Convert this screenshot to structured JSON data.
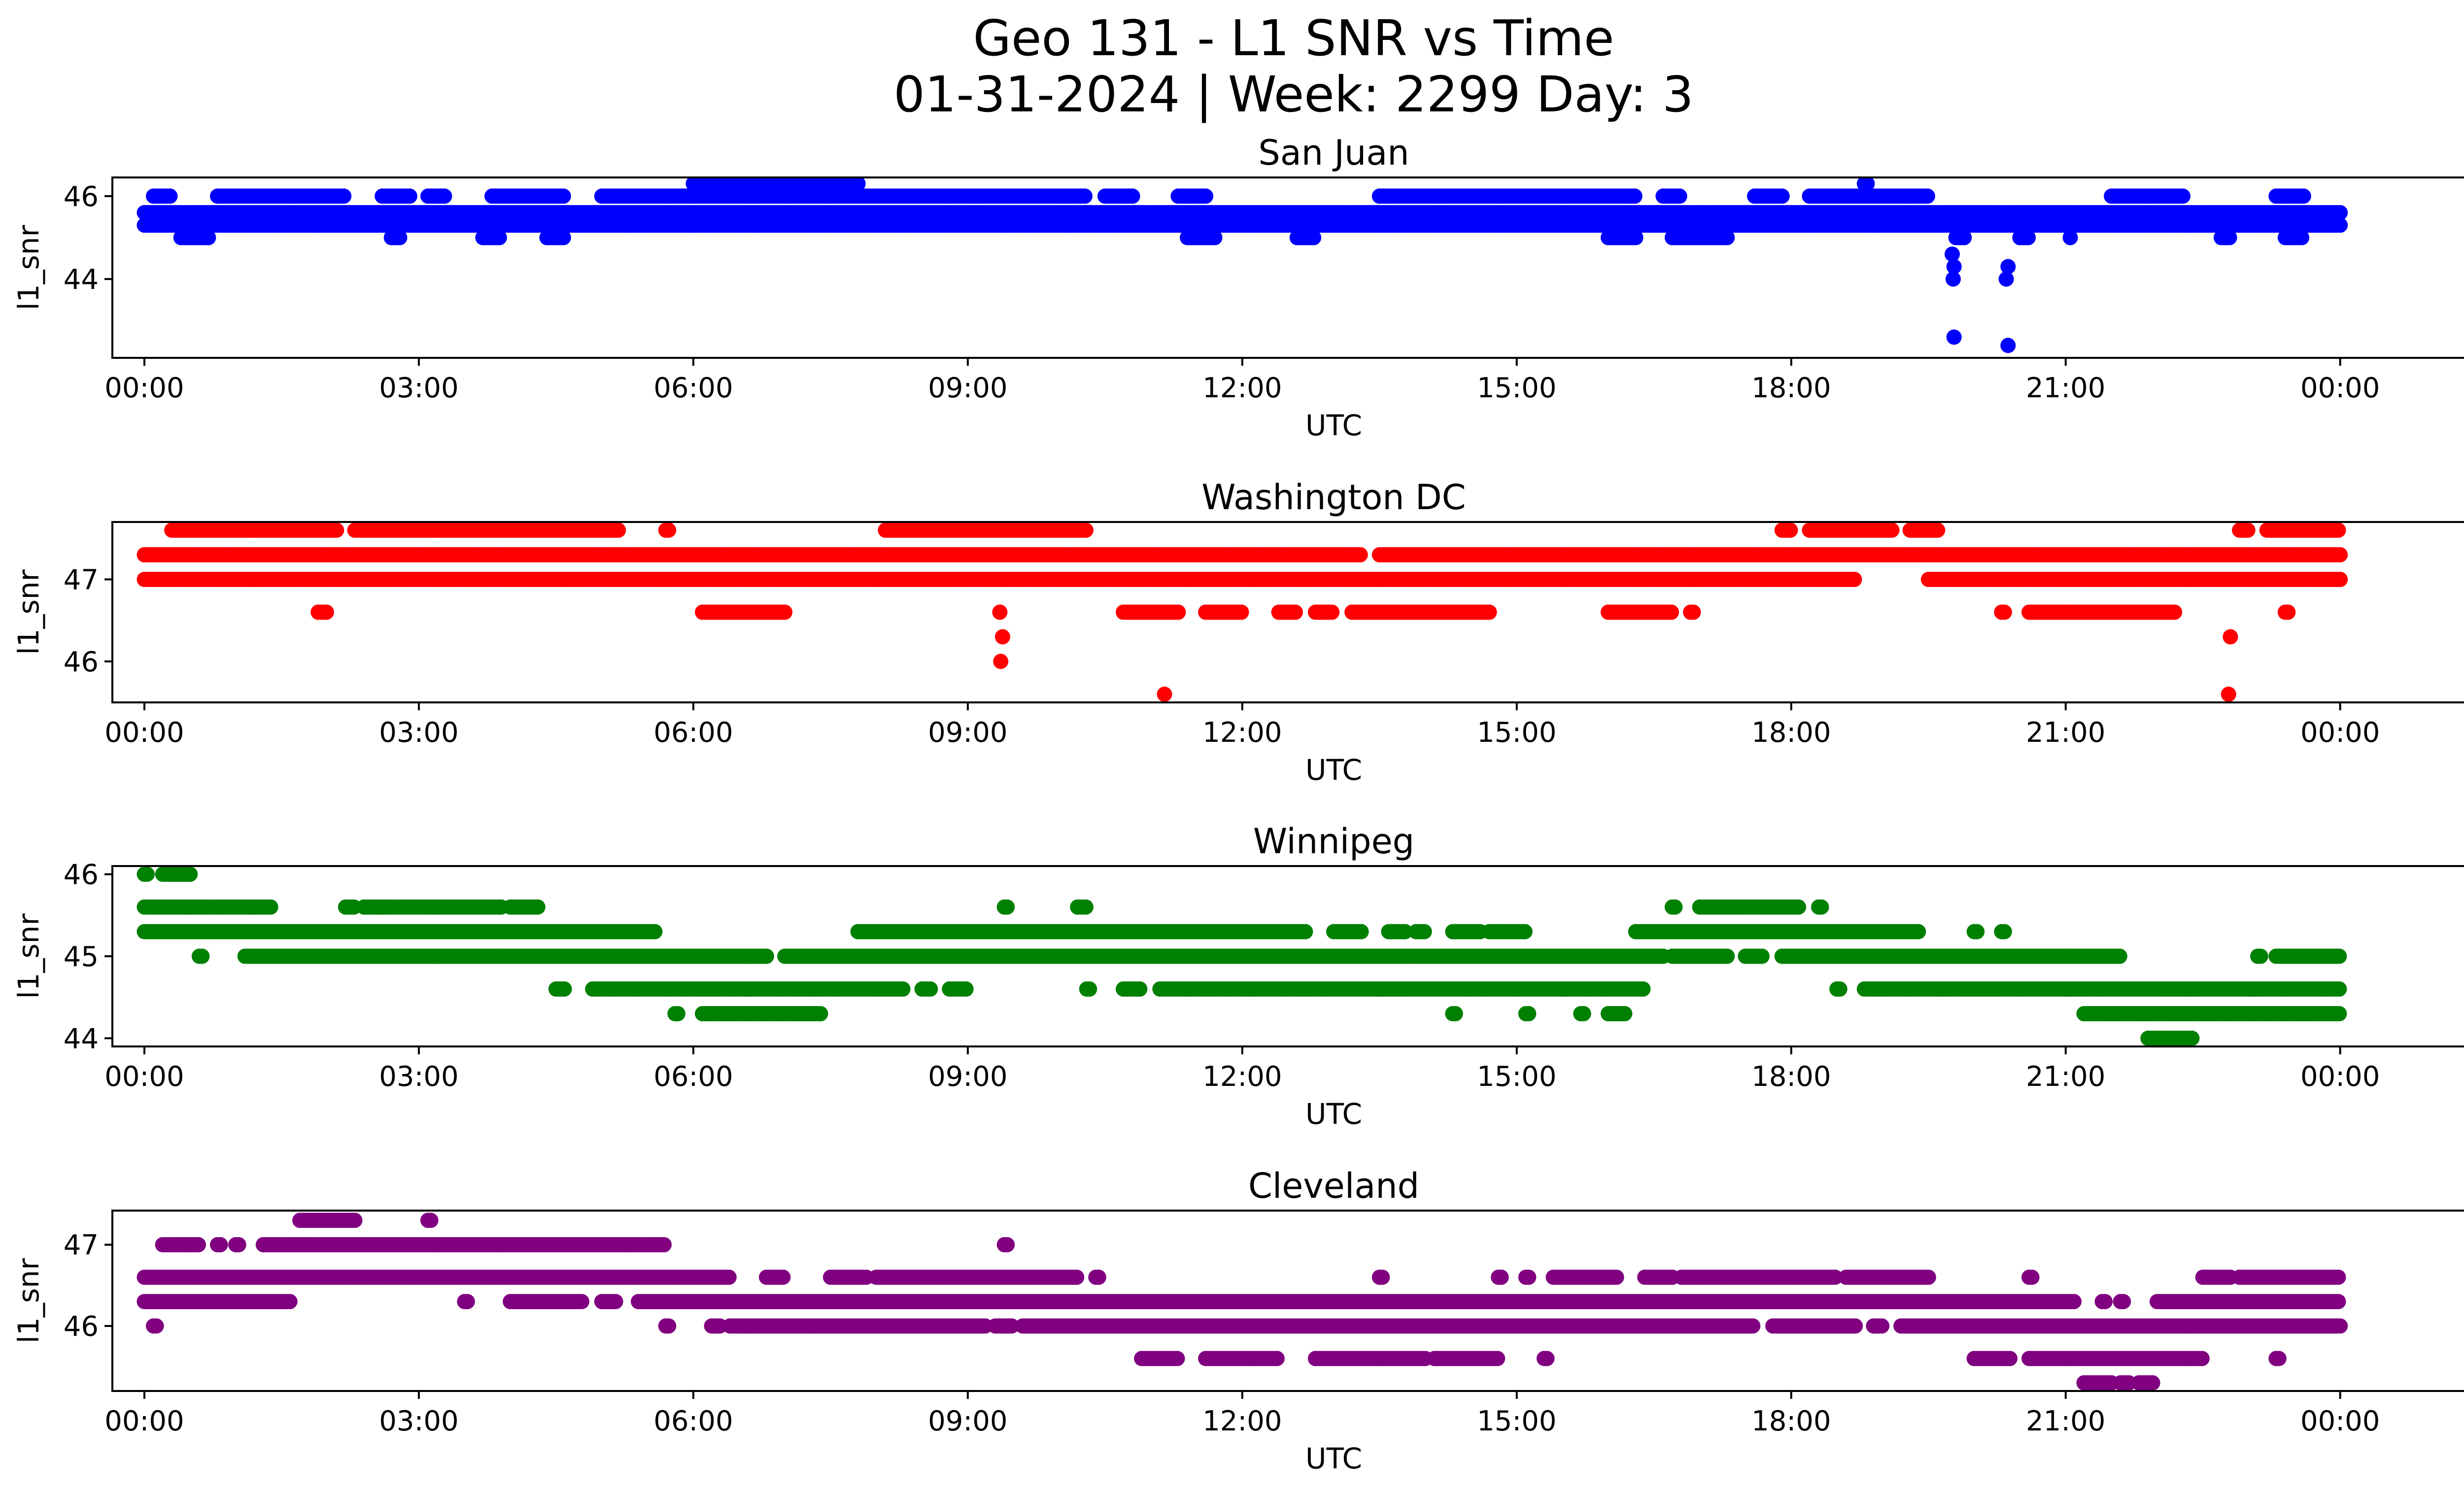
{
  "figure": {
    "title_line1": "Geo 131 - L1 SNR vs Time",
    "title_line2": "01-31-2024 | Week: 2299 Day: 3"
  },
  "chart_data": [
    {
      "type": "scatter",
      "title": "San Juan",
      "xlabel": "UTC",
      "ylabel": "l1_snr",
      "color": "#0000ff",
      "xlim": [
        -0.35,
        26.35
      ],
      "ylim": [
        42.1,
        46.45
      ],
      "x_ticks": [
        "00:00",
        "03:00",
        "06:00",
        "09:00",
        "12:00",
        "15:00",
        "18:00",
        "21:00",
        "00:00"
      ],
      "y_ticks": [
        44,
        46
      ],
      "grid": false,
      "levels": [
        {
          "y": 45.6,
          "ranges": [
            [
              0.0,
              24.0
            ]
          ]
        },
        {
          "y": 45.3,
          "ranges": [
            [
              0.0,
              24.0
            ]
          ]
        },
        {
          "y": 46.0,
          "ranges": [
            [
              0.1,
              0.3
            ],
            [
              0.8,
              2.2
            ],
            [
              2.6,
              2.9
            ],
            [
              3.1,
              3.3
            ],
            [
              3.8,
              4.6
            ],
            [
              5.0,
              10.3
            ],
            [
              10.5,
              10.8
            ],
            [
              11.3,
              11.6
            ],
            [
              13.5,
              16.3
            ],
            [
              16.6,
              16.8
            ],
            [
              17.6,
              17.9
            ],
            [
              18.2,
              19.5
            ],
            [
              21.5,
              22.3
            ],
            [
              23.3,
              23.6
            ]
          ]
        },
        {
          "y": 46.3,
          "ranges": [
            [
              6.0,
              7.8
            ],
            [
              18.8,
              18.85
            ]
          ]
        },
        {
          "y": 45.0,
          "ranges": [
            [
              0.4,
              0.7
            ],
            [
              2.7,
              2.8
            ],
            [
              3.7,
              3.9
            ],
            [
              4.4,
              4.6
            ],
            [
              11.4,
              11.7
            ],
            [
              12.6,
              12.8
            ],
            [
              16.0,
              16.3
            ],
            [
              16.7,
              17.3
            ],
            [
              19.8,
              19.9
            ],
            [
              20.5,
              20.6
            ],
            [
              22.7,
              22.8
            ],
            [
              23.4,
              23.6
            ]
          ]
        }
      ],
      "points": [
        [
          19.76,
          44.6
        ],
        [
          19.78,
          44.3
        ],
        [
          19.77,
          44.0
        ],
        [
          19.78,
          42.6
        ],
        [
          20.37,
          44.3
        ],
        [
          20.35,
          44.0
        ],
        [
          20.37,
          42.4
        ],
        [
          20.5,
          45.0
        ],
        [
          21.05,
          45.0
        ]
      ]
    },
    {
      "type": "scatter",
      "title": "Washington DC",
      "xlabel": "UTC",
      "ylabel": "l1_snr",
      "color": "#ff0000",
      "xlim": [
        -0.35,
        26.35
      ],
      "ylim": [
        45.5,
        47.7
      ],
      "x_ticks": [
        "00:00",
        "03:00",
        "06:00",
        "09:00",
        "12:00",
        "15:00",
        "18:00",
        "21:00",
        "00:00"
      ],
      "y_ticks": [
        46,
        47
      ],
      "grid": false,
      "levels": [
        {
          "y": 47.3,
          "ranges": [
            [
              0.0,
              13.3
            ],
            [
              13.5,
              24.0
            ]
          ]
        },
        {
          "y": 47.0,
          "ranges": [
            [
              0.0,
              18.7
            ],
            [
              19.5,
              24.0
            ]
          ]
        },
        {
          "y": 47.6,
          "ranges": [
            [
              0.3,
              2.1
            ],
            [
              2.3,
              5.2
            ],
            [
              5.7,
              5.75
            ],
            [
              8.1,
              10.3
            ],
            [
              17.9,
              18.0
            ],
            [
              18.2,
              19.1
            ],
            [
              19.3,
              19.6
            ],
            [
              22.9,
              23.0
            ],
            [
              23.2,
              24.0
            ]
          ]
        },
        {
          "y": 46.6,
          "ranges": [
            [
              1.9,
              2.0
            ],
            [
              6.1,
              7.0
            ],
            [
              10.7,
              11.3
            ],
            [
              11.6,
              12.0
            ],
            [
              12.4,
              12.6
            ],
            [
              12.8,
              13.0
            ],
            [
              13.2,
              14.7
            ],
            [
              16.0,
              16.7
            ],
            [
              16.9,
              16.95
            ],
            [
              20.3,
              20.35
            ],
            [
              20.6,
              22.2
            ],
            [
              23.4,
              23.45
            ]
          ]
        }
      ],
      "points": [
        [
          9.35,
          46.6
        ],
        [
          9.38,
          46.3
        ],
        [
          9.36,
          46.0
        ],
        [
          11.15,
          45.6
        ],
        [
          22.8,
          46.3
        ],
        [
          22.78,
          45.6
        ]
      ]
    },
    {
      "type": "scatter",
      "title": "Winnipeg",
      "xlabel": "UTC",
      "ylabel": "l1_snr",
      "color": "#008000",
      "xlim": [
        -0.35,
        26.35
      ],
      "ylim": [
        43.9,
        46.1
      ],
      "x_ticks": [
        "00:00",
        "03:00",
        "06:00",
        "09:00",
        "12:00",
        "15:00",
        "18:00",
        "21:00",
        "00:00"
      ],
      "y_ticks": [
        44,
        45,
        46
      ],
      "grid": false,
      "levels": [
        {
          "y": 46.0,
          "ranges": [
            [
              0.0,
              0.05
            ],
            [
              0.2,
              0.5
            ]
          ]
        },
        {
          "y": 45.6,
          "ranges": [
            [
              0.0,
              1.4
            ],
            [
              2.2,
              2.3
            ],
            [
              2.4,
              3.9
            ],
            [
              4.0,
              4.3
            ],
            [
              9.4,
              9.45
            ],
            [
              10.2,
              10.3
            ],
            [
              16.7,
              16.75
            ],
            [
              17.0,
              18.1
            ],
            [
              18.3,
              18.35
            ]
          ]
        },
        {
          "y": 45.3,
          "ranges": [
            [
              0.0,
              5.6
            ],
            [
              7.8,
              12.7
            ],
            [
              13.0,
              13.3
            ],
            [
              13.6,
              13.8
            ],
            [
              13.9,
              14.0
            ],
            [
              14.3,
              14.6
            ],
            [
              14.7,
              15.1
            ],
            [
              16.3,
              19.4
            ],
            [
              20.0,
              20.05
            ],
            [
              20.3,
              20.35
            ]
          ]
        },
        {
          "y": 45.0,
          "ranges": [
            [
              0.6,
              0.65
            ],
            [
              1.1,
              6.8
            ],
            [
              7.0,
              16.6
            ],
            [
              16.7,
              17.3
            ],
            [
              17.5,
              17.7
            ],
            [
              17.9,
              21.6
            ],
            [
              23.1,
              23.15
            ],
            [
              23.3,
              24.0
            ]
          ]
        },
        {
          "y": 44.6,
          "ranges": [
            [
              4.5,
              4.6
            ],
            [
              4.9,
              8.3
            ],
            [
              8.5,
              8.6
            ],
            [
              8.8,
              9.0
            ],
            [
              10.3,
              10.35
            ],
            [
              10.7,
              10.9
            ],
            [
              11.1,
              16.4
            ],
            [
              18.5,
              18.55
            ],
            [
              18.8,
              24.0
            ]
          ]
        },
        {
          "y": 44.3,
          "ranges": [
            [
              5.8,
              5.85
            ],
            [
              6.1,
              7.4
            ],
            [
              14.3,
              14.35
            ],
            [
              15.1,
              15.15
            ],
            [
              15.7,
              15.75
            ],
            [
              16.0,
              16.2
            ],
            [
              21.2,
              24.0
            ]
          ]
        },
        {
          "y": 44.0,
          "ranges": [
            [
              21.9,
              22.4
            ]
          ]
        }
      ],
      "points": []
    },
    {
      "type": "scatter",
      "title": "Cleveland",
      "xlabel": "UTC",
      "ylabel": "l1_snr",
      "color": "#800080",
      "xlim": [
        -0.35,
        26.35
      ],
      "ylim": [
        45.2,
        47.42
      ],
      "x_ticks": [
        "00:00",
        "03:00",
        "06:00",
        "09:00",
        "12:00",
        "15:00",
        "18:00",
        "21:00",
        "00:00"
      ],
      "y_ticks": [
        46,
        47
      ],
      "grid": false,
      "levels": [
        {
          "y": 47.3,
          "ranges": [
            [
              1.7,
              2.3
            ],
            [
              3.1,
              3.15
            ]
          ]
        },
        {
          "y": 47.0,
          "ranges": [
            [
              0.2,
              0.6
            ],
            [
              0.8,
              0.85
            ],
            [
              1.0,
              1.05
            ],
            [
              1.3,
              5.7
            ],
            [
              9.4,
              9.45
            ]
          ]
        },
        {
          "y": 46.6,
          "ranges": [
            [
              0.0,
              6.4
            ],
            [
              6.8,
              7.0
            ],
            [
              7.5,
              7.9
            ],
            [
              8.0,
              10.2
            ],
            [
              10.4,
              10.45
            ],
            [
              13.5,
              13.55
            ],
            [
              14.8,
              14.85
            ],
            [
              15.1,
              15.15
            ],
            [
              15.4,
              16.1
            ],
            [
              16.4,
              16.7
            ],
            [
              16.8,
              18.5
            ],
            [
              18.6,
              19.5
            ],
            [
              20.6,
              20.65
            ],
            [
              22.5,
              22.8
            ],
            [
              22.9,
              24.0
            ]
          ]
        },
        {
          "y": 46.3,
          "ranges": [
            [
              0.0,
              1.6
            ],
            [
              3.5,
              3.55
            ],
            [
              4.0,
              4.8
            ],
            [
              5.0,
              5.15
            ],
            [
              5.4,
              21.1
            ],
            [
              21.4,
              21.45
            ],
            [
              21.6,
              21.65
            ],
            [
              22.0,
              24.0
            ]
          ]
        },
        {
          "y": 46.0,
          "ranges": [
            [
              0.1,
              0.15
            ],
            [
              5.7,
              5.75
            ],
            [
              6.2,
              6.3
            ],
            [
              6.4,
              9.2
            ],
            [
              9.3,
              9.5
            ],
            [
              9.6,
              17.6
            ],
            [
              17.8,
              18.7
            ],
            [
              18.9,
              19.0
            ],
            [
              19.2,
              24.0
            ]
          ]
        },
        {
          "y": 45.6,
          "ranges": [
            [
              10.9,
              11.3
            ],
            [
              11.6,
              12.4
            ],
            [
              12.8,
              14.0
            ],
            [
              14.1,
              14.8
            ],
            [
              15.3,
              15.35
            ],
            [
              20.0,
              20.4
            ],
            [
              20.6,
              22.5
            ],
            [
              23.3,
              23.35
            ]
          ]
        },
        {
          "y": 45.3,
          "ranges": [
            [
              21.2,
              21.5
            ],
            [
              21.6,
              21.7
            ],
            [
              21.8,
              21.95
            ]
          ]
        }
      ],
      "points": []
    }
  ]
}
